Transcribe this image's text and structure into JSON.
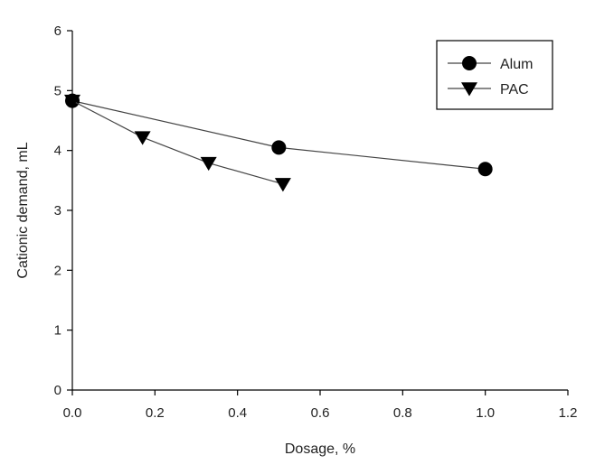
{
  "chart_data": {
    "type": "line",
    "title": "",
    "xlabel": "Dosage, %",
    "ylabel": "Cationic demand, mL",
    "xlim": [
      0,
      1.2
    ],
    "ylim": [
      0,
      6
    ],
    "x_ticks": [
      "0.0",
      "0.2",
      "0.4",
      "0.6",
      "0.8",
      "1.0",
      "1.2"
    ],
    "y_ticks": [
      "0",
      "1",
      "2",
      "3",
      "4",
      "5",
      "6"
    ],
    "grid": false,
    "legend": "top-right",
    "series": [
      {
        "name": "Alum",
        "marker": "circle",
        "x": [
          0.0,
          0.5,
          1.0
        ],
        "y": [
          4.83,
          4.05,
          3.69
        ]
      },
      {
        "name": "PAC",
        "marker": "triangle-down",
        "x": [
          0.0,
          0.17,
          0.33,
          0.51
        ],
        "y": [
          4.83,
          4.22,
          3.79,
          3.44
        ]
      }
    ]
  }
}
